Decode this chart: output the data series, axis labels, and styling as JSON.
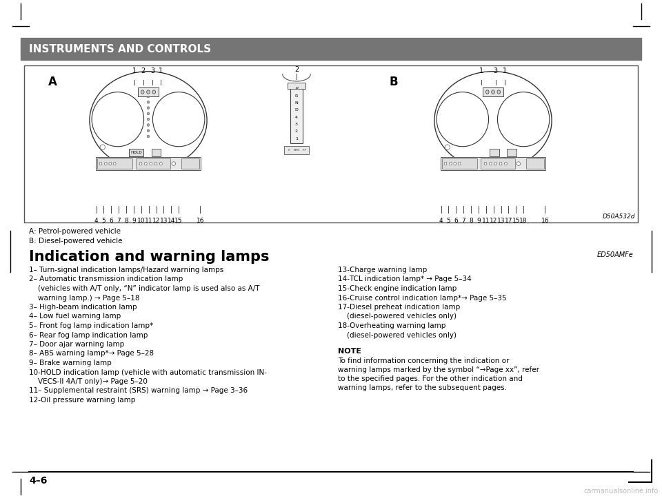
{
  "header_text": "INSTRUMENTS AND CONTROLS",
  "header_bg": "#757575",
  "header_text_color": "#ffffff",
  "page_bg": "#ffffff",
  "caption_A": "A: Petrol-powered vehicle",
  "caption_B": "B: Diesel-powered vehicle",
  "diagram_ref": "D50A532d",
  "section_ref": "ED50AMFe",
  "section_title": "Indication and warning lamps",
  "page_number": "4–6",
  "left_items": [
    [
      "1– Turn‑signal indication lamps/Hazard warning lamps",
      false
    ],
    [
      "2– Automatic transmission indication lamp",
      false
    ],
    [
      "    (vehicles with A/T only, “N” indicator lamp is used also as A/T",
      true
    ],
    [
      "    warning lamp.) → Page 5–18",
      true
    ],
    [
      "3– High‑beam indication lamp",
      false
    ],
    [
      "4– Low fuel warning lamp",
      false
    ],
    [
      "5– Front fog lamp indication lamp*",
      false
    ],
    [
      "6– Rear fog lamp indication lamp",
      false
    ],
    [
      "7– Door ajar warning lamp",
      false
    ],
    [
      "8– ABS warning lamp*→ Page 5–28",
      false
    ],
    [
      "9– Brake warning lamp",
      false
    ],
    [
      "10‑HOLD indication lamp (vehicle with automatic transmission IN-",
      false
    ],
    [
      "    VECS-II 4A/T only)→ Page 5–20",
      true
    ],
    [
      "11– Supplemental restraint (SRS) warning lamp → Page 3–36",
      false
    ],
    [
      "12‑Oil pressure warning lamp",
      false
    ]
  ],
  "right_items": [
    "13‑Charge warning lamp",
    "14‑TCL indication lamp* → Page 5–34",
    "15‑Check engine indication lamp",
    "16‑Cruise control indication lamp*→ Page 5–35",
    "17‑Diesel preheat indication lamp",
    "    (diesel-powered vehicles only)",
    "18‑Overheating warning lamp",
    "    (diesel-powered vehicles only)"
  ],
  "note_title": "NOTE",
  "note_text": "To find information concerning the indication or warning lamps marked by the symbol “→Page xx”, refer to the specified pages. For the other indication and warning lamps, refer to the subsequent pages."
}
